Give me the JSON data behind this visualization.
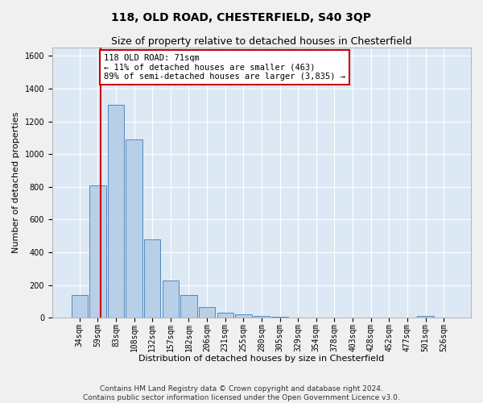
{
  "title": "118, OLD ROAD, CHESTERFIELD, S40 3QP",
  "subtitle": "Size of property relative to detached houses in Chesterfield",
  "xlabel": "Distribution of detached houses by size in Chesterfield",
  "ylabel": "Number of detached properties",
  "bar_color": "#b8cfe8",
  "bar_edge_color": "#5588bb",
  "background_color": "#dde8f5",
  "grid_color": "#ffffff",
  "categories": [
    "34sqm",
    "59sqm",
    "83sqm",
    "108sqm",
    "132sqm",
    "157sqm",
    "182sqm",
    "206sqm",
    "231sqm",
    "255sqm",
    "280sqm",
    "305sqm",
    "329sqm",
    "354sqm",
    "378sqm",
    "403sqm",
    "428sqm",
    "452sqm",
    "477sqm",
    "501sqm",
    "526sqm"
  ],
  "values": [
    140,
    810,
    1300,
    1090,
    480,
    230,
    140,
    65,
    30,
    20,
    10,
    5,
    3,
    2,
    1,
    1,
    1,
    0,
    0,
    10,
    0
  ],
  "ylim": [
    0,
    1650
  ],
  "yticks": [
    0,
    200,
    400,
    600,
    800,
    1000,
    1200,
    1400,
    1600
  ],
  "vline_x": 1.15,
  "annotation_text": "118 OLD ROAD: 71sqm\n← 11% of detached houses are smaller (463)\n89% of semi-detached houses are larger (3,835) →",
  "annotation_box_color": "#ffffff",
  "annotation_box_edge_color": "#cc0000",
  "vline_color": "#cc0000",
  "footer_line1": "Contains HM Land Registry data © Crown copyright and database right 2024.",
  "footer_line2": "Contains public sector information licensed under the Open Government Licence v3.0.",
  "title_fontsize": 10,
  "subtitle_fontsize": 9,
  "xlabel_fontsize": 8,
  "ylabel_fontsize": 8,
  "tick_fontsize": 7,
  "annotation_fontsize": 7.5,
  "footer_fontsize": 6.5
}
